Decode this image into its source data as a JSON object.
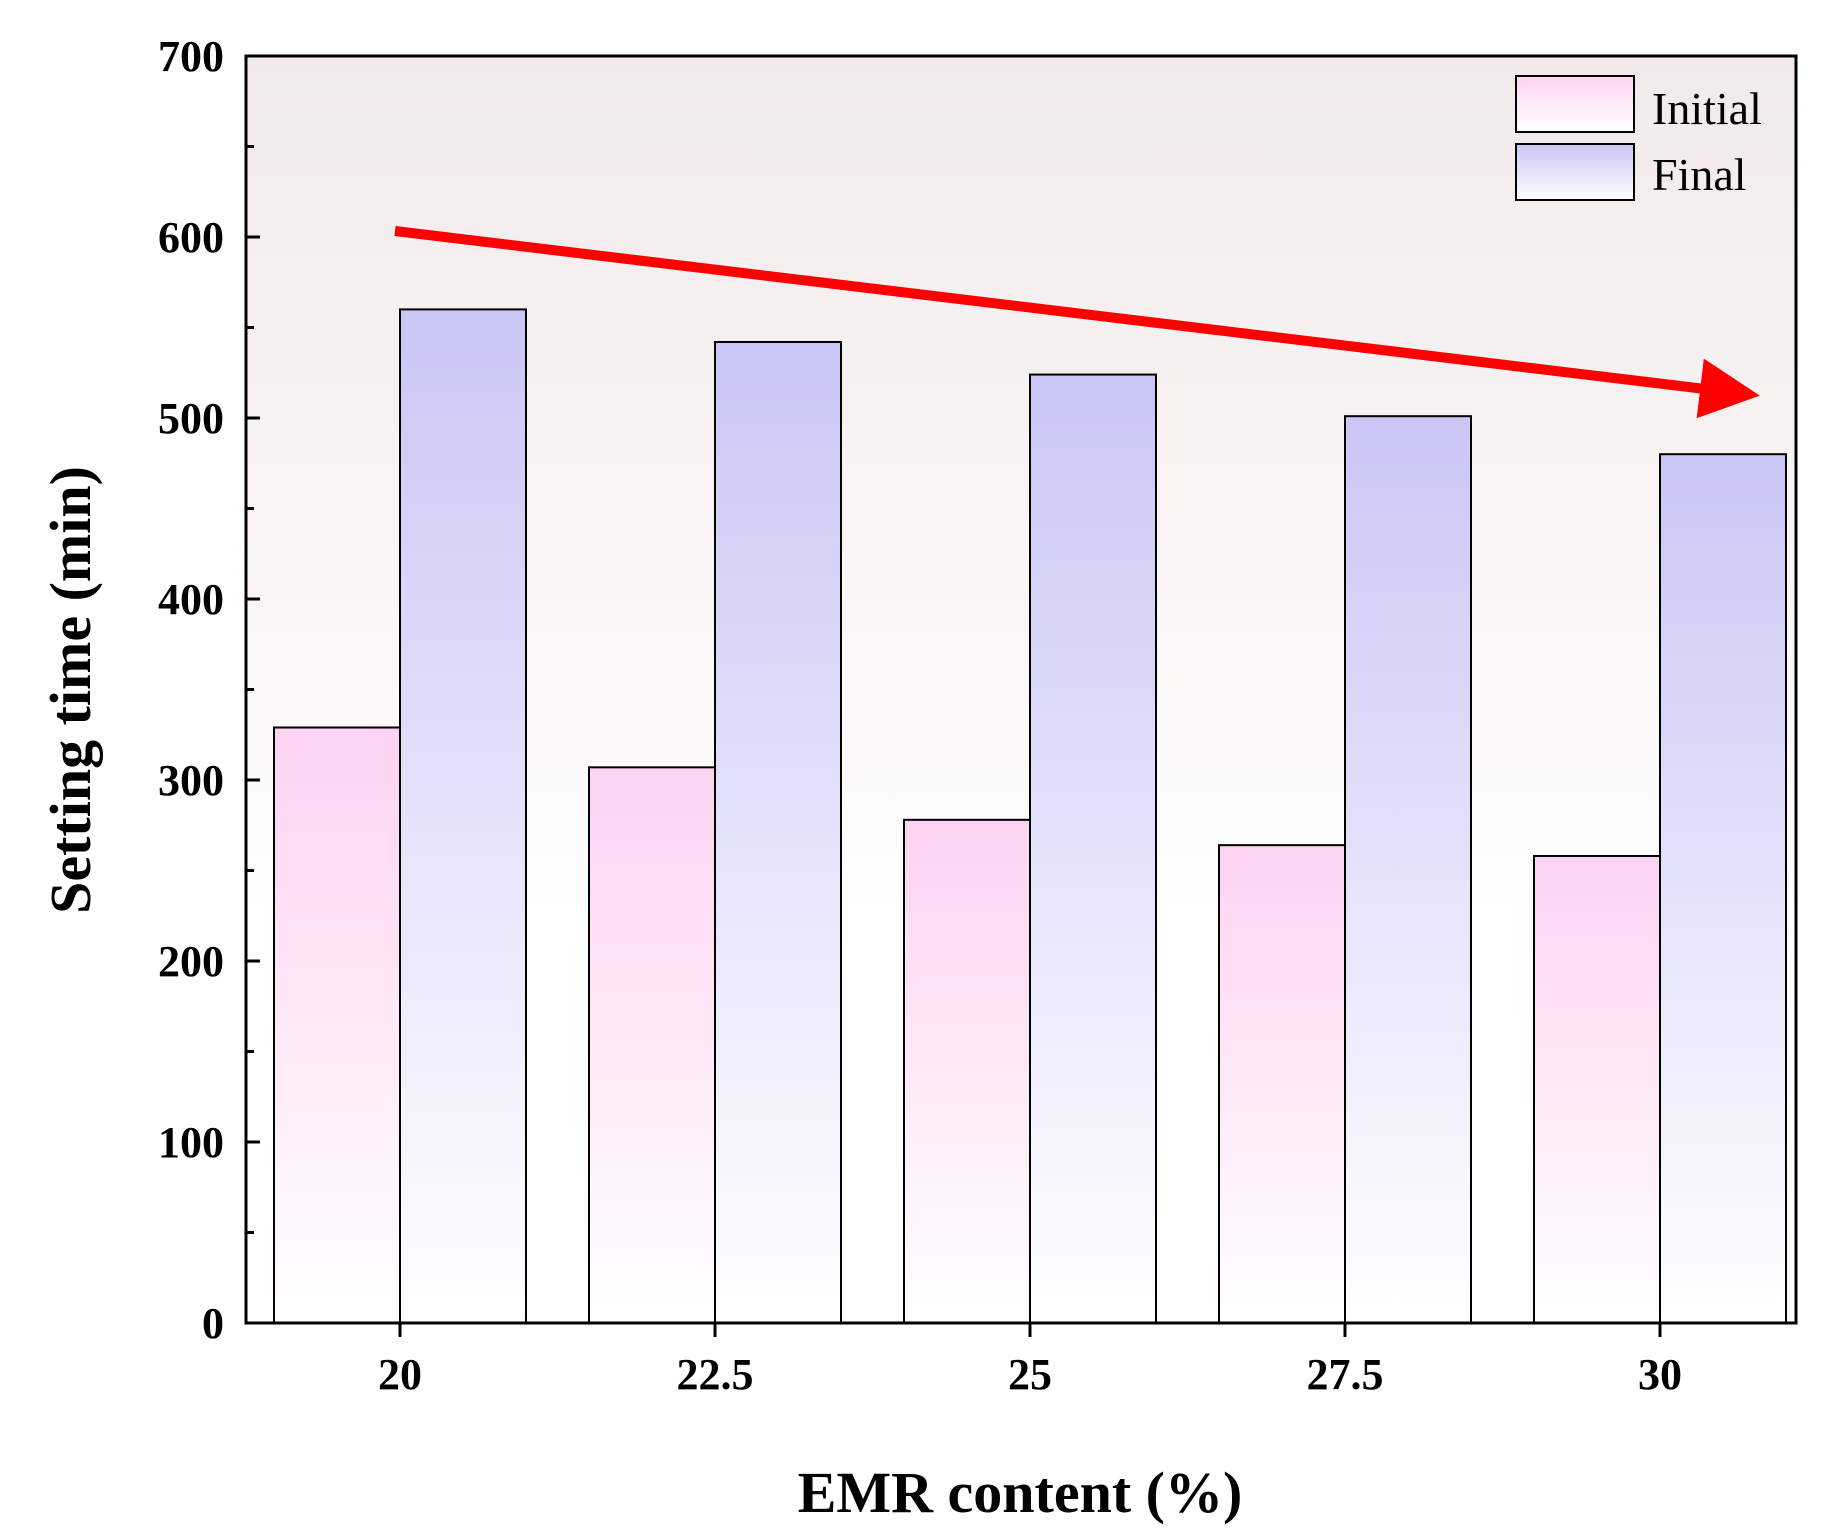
{
  "chart_data": {
    "type": "bar",
    "xlabel": "EMR content (%)",
    "ylabel": "Setting time (min)",
    "categories": [
      "20",
      "22.5",
      "25",
      "27.5",
      "30"
    ],
    "series": [
      {
        "name": "Initial",
        "values": [
          329,
          307,
          278,
          264,
          258
        ],
        "color": "#fdd3f1"
      },
      {
        "name": "Final",
        "values": [
          560,
          542,
          524,
          501,
          480
        ],
        "color": "#c9c6f5"
      }
    ],
    "ylim": [
      0,
      700
    ],
    "yticks": [
      0,
      100,
      200,
      300,
      400,
      500,
      600,
      700
    ],
    "grid": false,
    "legend_position": "top-right",
    "annotation": {
      "type": "trend-arrow",
      "color": "#ff0000",
      "direction": "decreasing"
    },
    "background_color": "#f2eaea"
  }
}
